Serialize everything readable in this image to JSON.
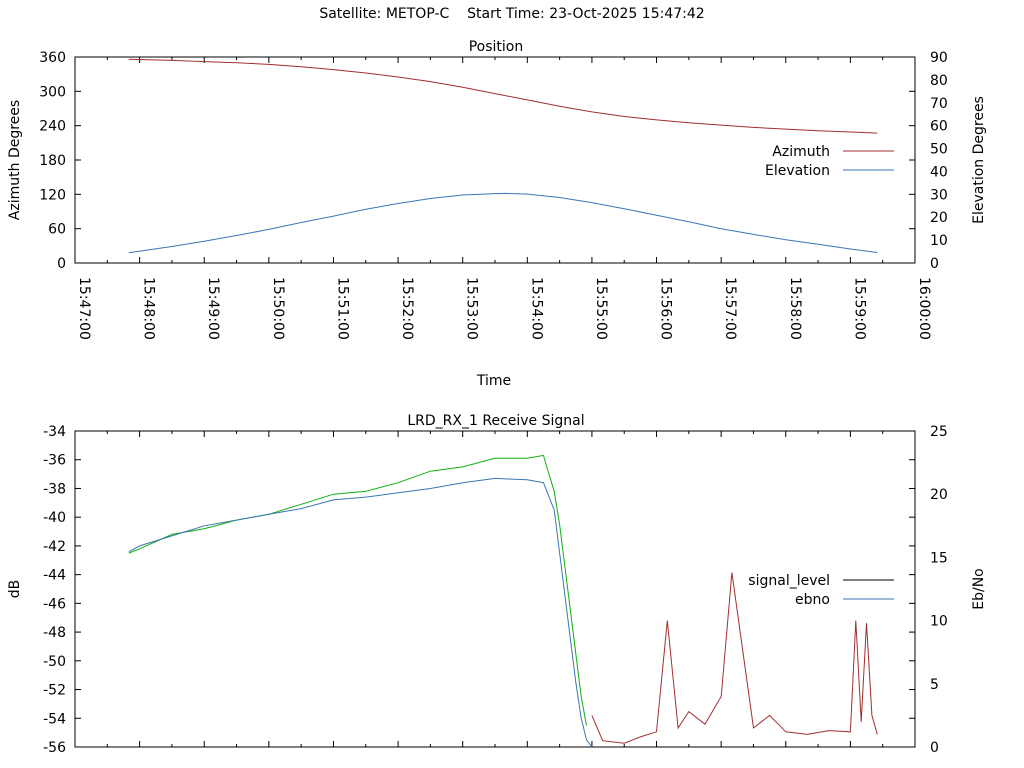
{
  "header": {
    "satellite_label": "Satellite: METOP-C",
    "start_time_label": "Start Time: 23-Oct-2025 15:47:42"
  },
  "chart_data": [
    {
      "type": "line",
      "title": "Position",
      "xlabel": "Time",
      "ylabel": "Azimuth Degrees",
      "y2label": "Elevation Degrees",
      "xlim": [
        "15:47:00",
        "16:00:00"
      ],
      "ylim": [
        0,
        360
      ],
      "y2lim": [
        0,
        90
      ],
      "x_ticks": [
        "15:47:00",
        "15:48:00",
        "15:49:00",
        "15:50:00",
        "15:51:00",
        "15:52:00",
        "15:53:00",
        "15:54:00",
        "15:55:00",
        "15:56:00",
        "15:57:00",
        "15:58:00",
        "15:59:00",
        "16:00:00"
      ],
      "y_ticks": [
        0,
        60,
        120,
        180,
        240,
        300,
        360
      ],
      "y2_ticks": [
        0,
        10,
        20,
        30,
        40,
        50,
        60,
        70,
        80,
        90
      ],
      "legend_position": "right",
      "grid": false,
      "series": [
        {
          "name": "Azimuth",
          "axis": "y",
          "color": "#a0302e",
          "x": [
            "15:47:50",
            "15:48:30",
            "15:49:00",
            "15:49:30",
            "15:50:00",
            "15:50:30",
            "15:51:00",
            "15:51:30",
            "15:52:00",
            "15:52:30",
            "15:53:00",
            "15:53:30",
            "15:54:00",
            "15:54:30",
            "15:55:00",
            "15:55:30",
            "15:56:00",
            "15:56:30",
            "15:57:00",
            "15:57:30",
            "15:58:00",
            "15:58:30",
            "15:59:00",
            "15:59:25"
          ],
          "values": [
            356,
            354,
            352,
            350,
            347,
            343,
            338,
            332,
            325,
            317,
            307,
            296,
            285,
            274,
            264,
            256,
            250,
            245,
            241,
            237,
            234,
            231,
            229,
            227
          ]
        },
        {
          "name": "Elevation",
          "axis": "y2",
          "color": "#3b76b5",
          "x": [
            "15:47:50",
            "15:48:30",
            "15:49:00",
            "15:49:30",
            "15:50:00",
            "15:50:30",
            "15:51:00",
            "15:51:30",
            "15:52:00",
            "15:52:30",
            "15:53:00",
            "15:53:30",
            "15:53:40",
            "15:54:00",
            "15:54:30",
            "15:55:00",
            "15:55:30",
            "15:56:00",
            "15:56:30",
            "15:57:00",
            "15:57:30",
            "15:58:00",
            "15:58:30",
            "15:59:00",
            "15:59:25"
          ],
          "values": [
            4.5,
            7.2,
            9.5,
            12,
            14.7,
            17.7,
            20.5,
            23.5,
            26,
            28.2,
            29.7,
            30.3,
            30.4,
            30.1,
            28.6,
            26.4,
            23.7,
            20.9,
            18,
            15,
            12.5,
            10.2,
            8.2,
            6.1,
            4.6
          ]
        }
      ]
    },
    {
      "type": "line",
      "title": "LRD_RX_1 Receive Signal",
      "xlabel": "",
      "ylabel": "dB",
      "y2label": "Eb/No",
      "xlim": [
        "15:47:00",
        "16:00:00"
      ],
      "ylim": [
        -56,
        -34
      ],
      "y2lim": [
        0,
        25
      ],
      "y_ticks": [
        -56,
        -54,
        -52,
        -50,
        -48,
        -46,
        -44,
        -42,
        -40,
        -38,
        -36,
        -34
      ],
      "y2_ticks": [
        0,
        5,
        10,
        15,
        20,
        25
      ],
      "legend_position": "right",
      "grid": false,
      "legend_entries": [
        {
          "name": "signal_level",
          "color": "#000000"
        },
        {
          "name": "ebno",
          "color": "#3b76b5"
        }
      ],
      "series": [
        {
          "key": "green",
          "axis": "y",
          "color": "#10b010",
          "x": [
            "15:47:50",
            "15:48:00",
            "15:48:30",
            "15:49:00",
            "15:49:30",
            "15:50:00",
            "15:50:30",
            "15:51:00",
            "15:51:30",
            "15:52:00",
            "15:52:30",
            "15:53:00",
            "15:53:30",
            "15:54:00",
            "15:54:15",
            "15:54:18",
            "15:54:25",
            "15:54:30",
            "15:54:35",
            "15:54:40",
            "15:54:45",
            "15:54:50",
            "15:54:55"
          ],
          "values": [
            -42.5,
            -42.2,
            -41.2,
            -40.8,
            -40.2,
            -39.8,
            -39.1,
            -38.4,
            -38.2,
            -37.6,
            -36.8,
            -36.5,
            -35.9,
            -35.9,
            -35.7,
            -36.5,
            -38.2,
            -40.5,
            -43.5,
            -46.5,
            -49.5,
            -52.5,
            -54.5
          ]
        },
        {
          "key": "blue",
          "axis": "y",
          "color": "#3b76b5",
          "x": [
            "15:47:50",
            "15:48:00",
            "15:48:30",
            "15:49:00",
            "15:49:30",
            "15:50:00",
            "15:50:30",
            "15:51:00",
            "15:51:30",
            "15:52:00",
            "15:52:30",
            "15:53:00",
            "15:53:30",
            "15:54:00",
            "15:54:15",
            "15:54:25",
            "15:54:30",
            "15:54:35",
            "15:54:40",
            "15:54:45",
            "15:54:50",
            "15:54:55",
            "15:55:00"
          ],
          "values": [
            -42.4,
            -42.0,
            -41.3,
            -40.6,
            -40.2,
            -39.8,
            -39.4,
            -38.8,
            -38.6,
            -38.3,
            -38.0,
            -37.6,
            -37.3,
            -37.4,
            -37.6,
            -39.5,
            -42.5,
            -45.5,
            -48.5,
            -51.5,
            -54.0,
            -55.5,
            -56.0
          ]
        },
        {
          "key": "red",
          "axis": "y2",
          "color": "#a0302e",
          "x": [
            "15:55:00",
            "15:55:10",
            "15:55:30",
            "15:55:45",
            "15:56:00",
            "15:56:10",
            "15:56:20",
            "15:56:30",
            "15:56:45",
            "15:57:00",
            "15:57:10",
            "15:57:30",
            "15:57:45",
            "15:58:00",
            "15:58:20",
            "15:58:40",
            "15:59:00",
            "15:59:05",
            "15:59:10",
            "15:59:15",
            "15:59:20",
            "15:59:25"
          ],
          "values": [
            2.5,
            0.5,
            0.3,
            0.8,
            1.2,
            10,
            1.5,
            2.8,
            1.8,
            4.0,
            13.8,
            1.5,
            2.5,
            1.2,
            1.0,
            1.3,
            1.2,
            10,
            2.0,
            9.8,
            2.5,
            1.0
          ]
        }
      ]
    }
  ]
}
